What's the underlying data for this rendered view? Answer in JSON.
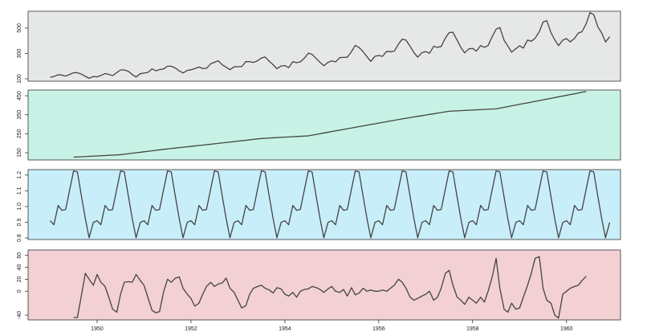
{
  "chart_data": {
    "type": "line",
    "xlim": [
      1948.53,
      1961.15
    ],
    "xticks": [
      1950,
      1952,
      1954,
      1956,
      1958,
      1960
    ],
    "x": [
      1949,
      1949.08,
      1949.17,
      1949.25,
      1949.33,
      1949.42,
      1949.5,
      1949.58,
      1949.67,
      1949.75,
      1949.83,
      1949.92,
      1950,
      1950.08,
      1950.17,
      1950.25,
      1950.33,
      1950.42,
      1950.5,
      1950.58,
      1950.67,
      1950.75,
      1950.83,
      1950.92,
      1951,
      1951.08,
      1951.17,
      1951.25,
      1951.33,
      1951.42,
      1951.5,
      1951.58,
      1951.67,
      1951.75,
      1951.83,
      1951.92,
      1952,
      1952.08,
      1952.17,
      1952.25,
      1952.33,
      1952.42,
      1952.5,
      1952.58,
      1952.67,
      1952.75,
      1952.83,
      1952.92,
      1953,
      1953.08,
      1953.17,
      1953.25,
      1953.33,
      1953.42,
      1953.5,
      1953.58,
      1953.67,
      1953.75,
      1953.83,
      1953.92,
      1954,
      1954.08,
      1954.17,
      1954.25,
      1954.33,
      1954.42,
      1954.5,
      1954.58,
      1954.67,
      1954.75,
      1954.83,
      1954.92,
      1955,
      1955.08,
      1955.17,
      1955.25,
      1955.33,
      1955.42,
      1955.5,
      1955.58,
      1955.67,
      1955.75,
      1955.83,
      1955.92,
      1956,
      1956.08,
      1956.17,
      1956.25,
      1956.33,
      1956.42,
      1956.5,
      1956.58,
      1956.67,
      1956.75,
      1956.83,
      1956.92,
      1957,
      1957.08,
      1957.17,
      1957.25,
      1957.33,
      1957.42,
      1957.5,
      1957.58,
      1957.67,
      1957.75,
      1957.83,
      1957.92,
      1958,
      1958.08,
      1958.17,
      1958.25,
      1958.33,
      1958.42,
      1958.5,
      1958.58,
      1958.67,
      1958.75,
      1958.83,
      1958.92,
      1959,
      1959.08,
      1959.17,
      1959.25,
      1959.33,
      1959.42,
      1959.5,
      1959.58,
      1959.67,
      1959.75,
      1959.83,
      1959.92,
      1960,
      1960.08,
      1960.17,
      1960.25,
      1960.33,
      1960.42,
      1960.5,
      1960.58,
      1960.67,
      1960.75,
      1960.83,
      1960.92
    ],
    "panels": [
      {
        "background": "#e6e8e7",
        "color": "#444444",
        "ylim": [
          81,
          633
        ],
        "yticks": [
          100,
          300,
          500
        ],
        "values": [
          112,
          118,
          132,
          129,
          121,
          135,
          148,
          148,
          136,
          119,
          104,
          118,
          115,
          126,
          141,
          135,
          125,
          149,
          170,
          170,
          158,
          133,
          114,
          140,
          145,
          150,
          178,
          163,
          172,
          178,
          199,
          199,
          184,
          162,
          146,
          166,
          171,
          180,
          193,
          181,
          183,
          218,
          230,
          242,
          209,
          191,
          172,
          194,
          196,
          196,
          236,
          235,
          229,
          243,
          264,
          272,
          237,
          211,
          180,
          201,
          204,
          188,
          235,
          227,
          234,
          264,
          302,
          293,
          259,
          229,
          203,
          229,
          242,
          233,
          267,
          269,
          270,
          315,
          364,
          347,
          312,
          274,
          237,
          278,
          284,
          277,
          317,
          313,
          318,
          374,
          413,
          405,
          355,
          306,
          271,
          306,
          315,
          301,
          356,
          348,
          355,
          422,
          465,
          467,
          404,
          347,
          305,
          336,
          340,
          318,
          362,
          348,
          363,
          435,
          491,
          505,
          404,
          359,
          310,
          337,
          360,
          342,
          406,
          396,
          420,
          472,
          548,
          559,
          463,
          407,
          362,
          405,
          417,
          391,
          419,
          461,
          472,
          535,
          622,
          606,
          508,
          461,
          390,
          432
        ]
      },
      {
        "background": "#c8f2e6",
        "color": "#444444",
        "ylim": [
          112,
          480
        ],
        "yticks": [
          150,
          250,
          350,
          450
        ],
        "values": [
          null,
          null,
          null,
          null,
          null,
          null,
          126.7,
          127.8,
          128.9,
          129.9,
          131.0,
          132.1,
          133.2,
          134.3,
          135.4,
          136.5,
          137.5,
          138.6,
          139.7,
          142.2,
          144.8,
          147.3,
          149.9,
          152.4,
          155.0,
          157.5,
          160.0,
          162.6,
          165.1,
          167.7,
          170.2,
          172.4,
          174.7,
          176.9,
          179.1,
          181.4,
          183.6,
          185.8,
          188.1,
          190.3,
          192.5,
          194.8,
          197.0,
          199.3,
          201.7,
          204.0,
          206.3,
          208.7,
          211.0,
          213.3,
          215.7,
          218.0,
          220.3,
          222.7,
          225.0,
          226.2,
          227.3,
          228.5,
          229.6,
          230.8,
          232.0,
          233.1,
          234.3,
          235.4,
          236.6,
          237.7,
          238.9,
          242.7,
          246.4,
          250.2,
          253.9,
          257.7,
          261.5,
          265.2,
          269.0,
          272.7,
          276.5,
          280.2,
          284.0,
          287.7,
          291.4,
          295.1,
          298.8,
          302.5,
          306.2,
          309.8,
          313.5,
          317.2,
          320.9,
          324.6,
          328.3,
          331.6,
          335.0,
          338.3,
          341.7,
          345.0,
          348.3,
          351.7,
          355.0,
          358.4,
          361.7,
          365.1,
          368.4,
          369.5,
          370.5,
          371.6,
          372.6,
          373.7,
          374.7,
          375.8,
          376.8,
          377.9,
          378.9,
          380.0,
          381.0,
          384.9,
          388.9,
          392.8,
          396.8,
          400.7,
          404.7,
          408.6,
          412.5,
          416.5,
          420.4,
          424.4,
          428.3,
          432.3,
          436.3,
          440.3,
          444.3,
          448.3,
          452.2,
          456.2,
          460.2,
          464.2,
          468.2,
          472.2,
          null,
          null,
          null,
          null,
          null,
          null
        ]
      },
      {
        "background": "#c8eefa",
        "color": "#444444",
        "ylim": [
          0.79,
          1.235
        ],
        "yticks": [
          0.8,
          0.9,
          {
            "value": 1,
            "label": "1.0"
          },
          1.1,
          1.2
        ],
        "values": [
          0.91,
          0.884,
          1.007,
          0.976,
          0.981,
          1.113,
          1.227,
          1.22,
          1.06,
          0.922,
          0.801,
          0.899,
          0.91,
          0.884,
          1.007,
          0.976,
          0.981,
          1.113,
          1.227,
          1.22,
          1.06,
          0.922,
          0.801,
          0.899,
          0.91,
          0.884,
          1.007,
          0.976,
          0.981,
          1.113,
          1.227,
          1.22,
          1.06,
          0.922,
          0.801,
          0.899,
          0.91,
          0.884,
          1.007,
          0.976,
          0.981,
          1.113,
          1.227,
          1.22,
          1.06,
          0.922,
          0.801,
          0.899,
          0.91,
          0.884,
          1.007,
          0.976,
          0.981,
          1.113,
          1.227,
          1.22,
          1.06,
          0.922,
          0.801,
          0.899,
          0.91,
          0.884,
          1.007,
          0.976,
          0.981,
          1.113,
          1.227,
          1.22,
          1.06,
          0.922,
          0.801,
          0.899,
          0.91,
          0.884,
          1.007,
          0.976,
          0.981,
          1.113,
          1.227,
          1.22,
          1.06,
          0.922,
          0.801,
          0.899,
          0.91,
          0.884,
          1.007,
          0.976,
          0.981,
          1.113,
          1.227,
          1.22,
          1.06,
          0.922,
          0.801,
          0.899,
          0.91,
          0.884,
          1.007,
          0.976,
          0.981,
          1.113,
          1.227,
          1.22,
          1.06,
          0.922,
          0.801,
          0.899,
          0.91,
          0.884,
          1.007,
          0.976,
          0.981,
          1.113,
          1.227,
          1.22,
          1.06,
          0.922,
          0.801,
          0.899,
          0.91,
          0.884,
          1.007,
          0.976,
          0.981,
          1.113,
          1.227,
          1.22,
          1.06,
          0.922,
          0.801,
          0.899,
          0.91,
          0.884,
          1.007,
          0.976,
          0.981,
          1.113,
          1.227,
          1.22,
          1.06,
          0.922,
          0.801,
          0.899
        ]
      },
      {
        "background": "#f2d0d3",
        "color": "#444444",
        "ylim": [
          -48,
          69
        ],
        "yticks": [
          -40,
          0,
          20,
          40,
          60
        ],
        "values": [
          null,
          null,
          null,
          null,
          null,
          null,
          -44,
          -44,
          -5,
          30,
          20,
          10,
          28,
          15,
          8,
          -10,
          -30,
          -35,
          -5,
          15,
          16,
          15,
          28,
          18,
          10,
          -10,
          -32,
          -36,
          -34,
          0,
          20,
          15,
          22,
          24,
          5,
          -5,
          -12,
          -25,
          -20,
          -5,
          8,
          15,
          8,
          12,
          14,
          22,
          5,
          -2,
          -15,
          -28,
          -24,
          -5,
          5,
          8,
          10,
          5,
          2,
          -3,
          6,
          4,
          -5,
          -8,
          -2,
          -10,
          0,
          3,
          4,
          8,
          6,
          3,
          -2,
          4,
          8,
          0,
          -2,
          3,
          -8,
          6,
          -6,
          -3,
          5,
          0,
          2,
          0,
          0,
          2,
          0,
          5,
          10,
          20,
          15,
          5,
          -10,
          -15,
          -12,
          -8,
          -5,
          0,
          -15,
          -10,
          5,
          30,
          35,
          10,
          -10,
          -15,
          -22,
          -10,
          -15,
          -20,
          -10,
          -18,
          0,
          25,
          55,
          5,
          -30,
          -35,
          -20,
          -30,
          -28,
          -10,
          10,
          30,
          55,
          58,
          5,
          -15,
          -20,
          -40,
          -45,
          -5,
          0,
          5,
          8,
          10,
          18,
          25,
          null,
          null,
          null,
          null,
          null,
          null
        ]
      }
    ]
  }
}
